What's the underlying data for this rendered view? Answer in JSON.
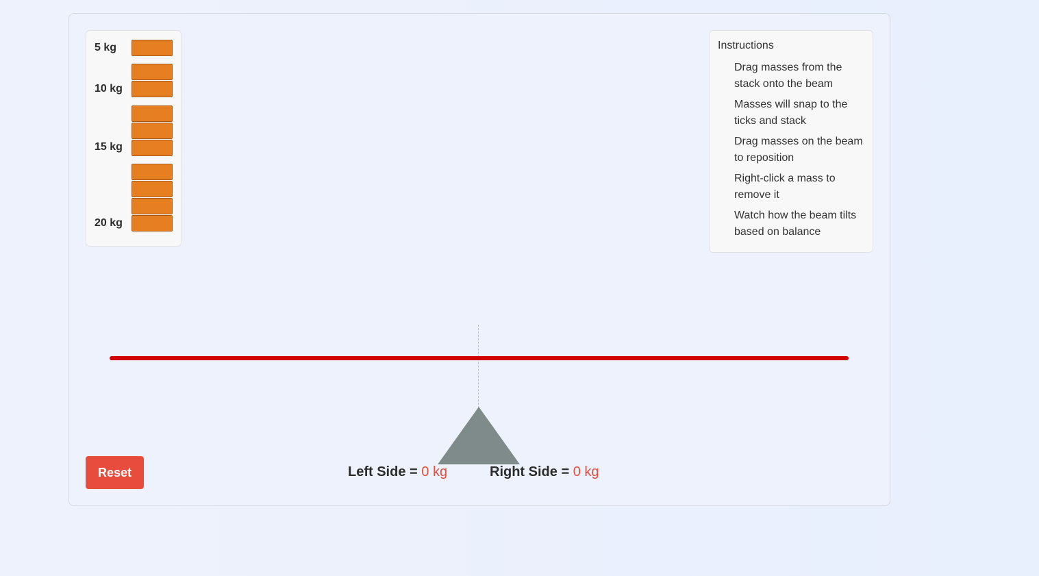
{
  "mass_stack": {
    "groups": [
      {
        "label": "5 kg",
        "count": 1
      },
      {
        "label": "10 kg",
        "count": 2
      },
      {
        "label": "15 kg",
        "count": 3
      },
      {
        "label": "20 kg",
        "count": 4
      }
    ],
    "block_color": "#e67e22"
  },
  "instructions": {
    "title": "Instructions",
    "items": [
      "Drag masses from the stack onto the beam",
      "Masses will snap to the ticks and stack",
      "Drag masses on the beam to reposition",
      "Right-click a mass to remove it",
      "Watch how the beam tilts based on balance"
    ]
  },
  "beam": {
    "color": "#d00000",
    "tilt_degrees": 0
  },
  "controls": {
    "reset_label": "Reset"
  },
  "readout": {
    "left_label": "Left Side =",
    "left_value": "0",
    "right_label": "Right Side =",
    "right_value": "0",
    "unit": "kg"
  }
}
